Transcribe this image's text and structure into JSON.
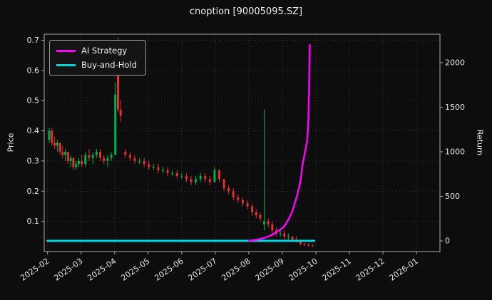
{
  "chart_data": {
    "type": "candlestick",
    "title": "cnoption [90005095.SZ]",
    "grid": true,
    "legend_position": "upper left",
    "x_axis": {
      "tick_labels": [
        "2025-02",
        "2025-03",
        "2025-04",
        "2025-05",
        "2025-06",
        "2025-07",
        "2025-08",
        "2025-09",
        "2025-10",
        "2025-11",
        "2025-12",
        "2026-01"
      ],
      "domain_months": [
        -0.1,
        11.7
      ]
    },
    "price_axis": {
      "label": "Price",
      "ticks": [
        0.1,
        0.2,
        0.3,
        0.4,
        0.5,
        0.6,
        0.7
      ],
      "lim": [
        0.0,
        0.72
      ]
    },
    "return_axis": {
      "label": "Return",
      "ticks": [
        0,
        500,
        1000,
        1500,
        2000
      ],
      "lim": [
        -120,
        2320
      ]
    },
    "candles_format": [
      "x_month_offset_from_2025-02",
      "open",
      "high",
      "low",
      "close"
    ],
    "candles": [
      [
        0.05,
        0.37,
        0.41,
        0.36,
        0.4
      ],
      [
        0.13,
        0.4,
        0.41,
        0.35,
        0.36
      ],
      [
        0.21,
        0.36,
        0.38,
        0.34,
        0.35
      ],
      [
        0.29,
        0.35,
        0.37,
        0.33,
        0.36
      ],
      [
        0.37,
        0.36,
        0.36,
        0.32,
        0.33
      ],
      [
        0.45,
        0.33,
        0.35,
        0.31,
        0.32
      ],
      [
        0.53,
        0.32,
        0.34,
        0.3,
        0.33
      ],
      [
        0.61,
        0.33,
        0.33,
        0.29,
        0.3
      ],
      [
        0.69,
        0.3,
        0.32,
        0.28,
        0.31
      ],
      [
        0.77,
        0.31,
        0.31,
        0.27,
        0.28
      ],
      [
        0.85,
        0.28,
        0.3,
        0.27,
        0.29
      ],
      [
        0.93,
        0.29,
        0.31,
        0.28,
        0.3
      ],
      [
        1.02,
        0.3,
        0.32,
        0.28,
        0.29
      ],
      [
        1.13,
        0.29,
        0.33,
        0.28,
        0.32
      ],
      [
        1.24,
        0.32,
        0.34,
        0.3,
        0.31
      ],
      [
        1.35,
        0.31,
        0.33,
        0.29,
        0.32
      ],
      [
        1.46,
        0.32,
        0.34,
        0.31,
        0.33
      ],
      [
        1.57,
        0.33,
        0.34,
        0.3,
        0.31
      ],
      [
        1.68,
        0.31,
        0.32,
        0.29,
        0.3
      ],
      [
        1.79,
        0.3,
        0.32,
        0.28,
        0.31
      ],
      [
        1.9,
        0.31,
        0.33,
        0.3,
        0.32
      ],
      [
        2.02,
        0.32,
        0.56,
        0.32,
        0.52
      ],
      [
        2.1,
        0.7,
        0.71,
        0.46,
        0.47
      ],
      [
        2.18,
        0.47,
        0.5,
        0.43,
        0.45
      ],
      [
        2.32,
        0.33,
        0.34,
        0.31,
        0.32
      ],
      [
        2.46,
        0.32,
        0.33,
        0.3,
        0.31
      ],
      [
        2.6,
        0.31,
        0.32,
        0.29,
        0.3
      ],
      [
        2.74,
        0.3,
        0.31,
        0.29,
        0.3
      ],
      [
        2.88,
        0.3,
        0.31,
        0.28,
        0.29
      ],
      [
        3.02,
        0.29,
        0.3,
        0.27,
        0.28
      ],
      [
        3.16,
        0.28,
        0.29,
        0.27,
        0.28
      ],
      [
        3.3,
        0.28,
        0.29,
        0.26,
        0.27
      ],
      [
        3.44,
        0.27,
        0.28,
        0.26,
        0.27
      ],
      [
        3.58,
        0.27,
        0.28,
        0.25,
        0.26
      ],
      [
        3.72,
        0.26,
        0.27,
        0.25,
        0.26
      ],
      [
        3.86,
        0.26,
        0.27,
        0.24,
        0.25
      ],
      [
        4.0,
        0.25,
        0.26,
        0.24,
        0.25
      ],
      [
        4.14,
        0.25,
        0.26,
        0.23,
        0.24
      ],
      [
        4.28,
        0.24,
        0.25,
        0.22,
        0.23
      ],
      [
        4.42,
        0.23,
        0.25,
        0.22,
        0.24
      ],
      [
        4.56,
        0.24,
        0.26,
        0.23,
        0.25
      ],
      [
        4.7,
        0.25,
        0.26,
        0.23,
        0.24
      ],
      [
        4.84,
        0.24,
        0.25,
        0.22,
        0.23
      ],
      [
        4.98,
        0.23,
        0.28,
        0.23,
        0.27
      ],
      [
        5.12,
        0.27,
        0.27,
        0.23,
        0.24
      ],
      [
        5.26,
        0.24,
        0.24,
        0.2,
        0.21
      ],
      [
        5.4,
        0.21,
        0.22,
        0.19,
        0.2
      ],
      [
        5.54,
        0.2,
        0.21,
        0.17,
        0.18
      ],
      [
        5.68,
        0.18,
        0.19,
        0.16,
        0.17
      ],
      [
        5.82,
        0.17,
        0.18,
        0.15,
        0.16
      ],
      [
        5.96,
        0.16,
        0.17,
        0.14,
        0.15
      ],
      [
        6.1,
        0.15,
        0.16,
        0.12,
        0.13
      ],
      [
        6.22,
        0.13,
        0.14,
        0.11,
        0.12
      ],
      [
        6.34,
        0.12,
        0.13,
        0.1,
        0.11
      ],
      [
        6.46,
        0.09,
        0.47,
        0.07,
        0.1
      ],
      [
        6.58,
        0.1,
        0.11,
        0.08,
        0.09
      ],
      [
        6.7,
        0.09,
        0.1,
        0.06,
        0.07
      ],
      [
        6.82,
        0.07,
        0.08,
        0.05,
        0.06
      ],
      [
        6.94,
        0.06,
        0.07,
        0.05,
        0.06
      ],
      [
        7.06,
        0.06,
        0.07,
        0.04,
        0.05
      ],
      [
        7.18,
        0.05,
        0.06,
        0.04,
        0.05
      ],
      [
        7.3,
        0.05,
        0.05,
        0.03,
        0.04
      ],
      [
        7.42,
        0.04,
        0.05,
        0.03,
        0.035
      ],
      [
        7.54,
        0.035,
        0.04,
        0.02,
        0.025
      ],
      [
        7.66,
        0.025,
        0.03,
        0.018,
        0.022
      ],
      [
        7.78,
        0.022,
        0.028,
        0.016,
        0.02
      ],
      [
        7.9,
        0.02,
        0.025,
        0.015,
        0.018
      ]
    ],
    "series": [
      {
        "name": "AI Strategy",
        "color": "#ff00ff",
        "axis": "return",
        "points": [
          [
            6.0,
            0
          ],
          [
            6.15,
            8
          ],
          [
            6.3,
            18
          ],
          [
            6.46,
            32
          ],
          [
            6.58,
            48
          ],
          [
            6.7,
            68
          ],
          [
            6.82,
            95
          ],
          [
            6.94,
            125
          ],
          [
            7.06,
            165
          ],
          [
            7.18,
            235
          ],
          [
            7.3,
            335
          ],
          [
            7.42,
            480
          ],
          [
            7.54,
            660
          ],
          [
            7.6,
            850
          ],
          [
            7.68,
            1000
          ],
          [
            7.74,
            1120
          ],
          [
            7.78,
            1350
          ],
          [
            7.82,
            2200
          ]
        ]
      },
      {
        "name": "Buy-and-Hold",
        "color": "#00d5dd",
        "axis": "return",
        "points": [
          [
            0.0,
            0
          ],
          [
            7.95,
            0
          ]
        ]
      }
    ],
    "colors": {
      "up": "#00b050",
      "down": "#e23030",
      "background": "#0d0d0d",
      "text": "#e8e8e8",
      "grid": "#383838",
      "frame": "#aaaaaa"
    }
  }
}
